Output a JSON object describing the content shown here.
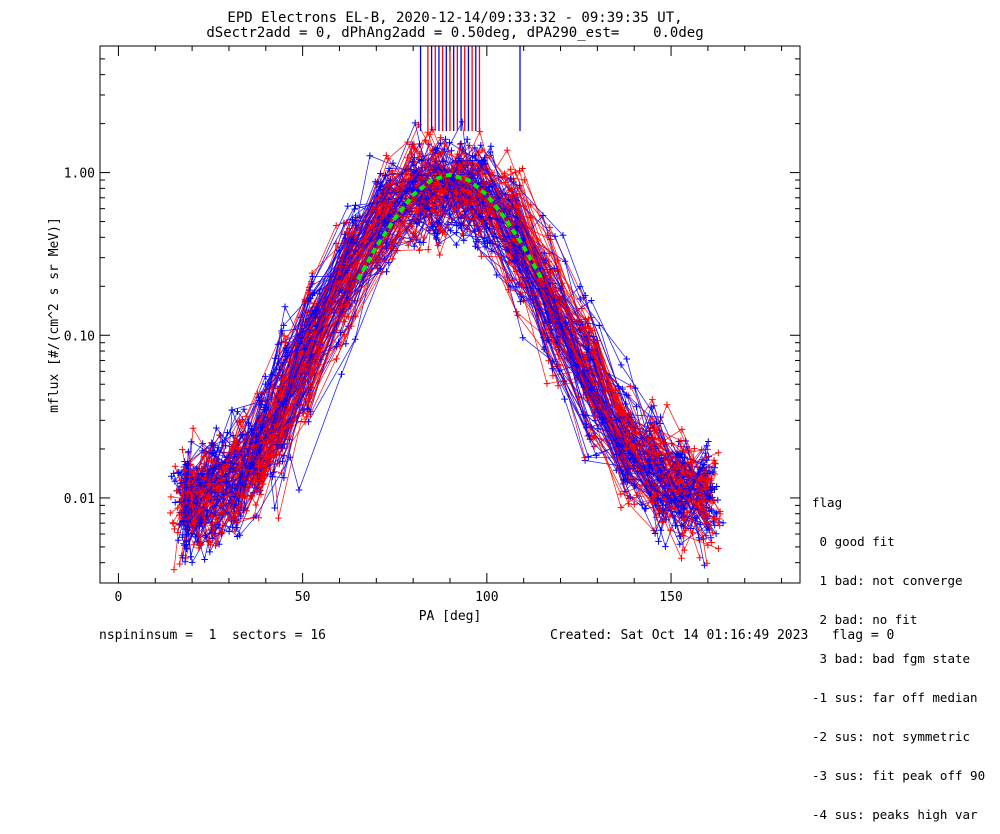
{
  "title": {
    "line1": "EPD Electrons EL-B, 2020-12-14/09:33:32 - 09:39:35 UT,",
    "line2": "dSectr2add = 0, dPhAng2add = 0.50deg, dPA290_est=    0.0deg"
  },
  "footer": {
    "left": "nspininsum =  1  sectors = 16",
    "right": "Created: Sat Oct 14 01:16:49 2023   flag = 0"
  },
  "legend": {
    "title": "flag",
    "items": [
      " 0 good fit",
      " 1 bad: not converge",
      " 2 bad: no fit",
      " 3 bad: bad fgm state",
      "-1 sus: far off median",
      "-2 sus: not symmetric",
      "-3 sus: fit peak off 90",
      "-4 sus: peaks high var"
    ]
  },
  "chart_data": {
    "type": "line",
    "xlabel": "PA [deg]",
    "ylabel": "mflux [#/(cm^2 s sr MeV)]",
    "xlim": [
      -5,
      185
    ],
    "ylim": [
      0.003,
      6.0
    ],
    "y_scale": "log",
    "x_ticks": [
      0,
      50,
      100,
      150
    ],
    "x_tick_labels": [
      "0",
      "50",
      "100",
      "150"
    ],
    "y_ticks": [
      0.01,
      0.1,
      1.0
    ],
    "y_tick_labels": [
      "0.01",
      "0.10",
      "1.00"
    ],
    "grid": false,
    "colors": {
      "series_a": "#ff0000",
      "series_b": "#0000ff",
      "fit": "#00ee00",
      "axes": "#000000"
    },
    "representative_curve": {
      "x": [
        18,
        30,
        40,
        50,
        60,
        70,
        80,
        90,
        100,
        110,
        120,
        130,
        140,
        150,
        162
      ],
      "y": [
        0.009,
        0.012,
        0.02,
        0.07,
        0.2,
        0.45,
        0.8,
        0.8,
        0.75,
        0.35,
        0.12,
        0.05,
        0.018,
        0.012,
        0.01
      ]
    },
    "fit_curve": {
      "x": [
        65,
        70,
        75,
        80,
        85,
        90,
        95,
        100,
        105,
        110,
        115
      ],
      "y": [
        0.22,
        0.35,
        0.52,
        0.73,
        0.9,
        0.97,
        0.9,
        0.73,
        0.52,
        0.35,
        0.22
      ]
    },
    "peak_markers_x": [
      82,
      84,
      85,
      86,
      87,
      88,
      89,
      90,
      91,
      92,
      93,
      94,
      95,
      96,
      97,
      98,
      109
    ]
  }
}
